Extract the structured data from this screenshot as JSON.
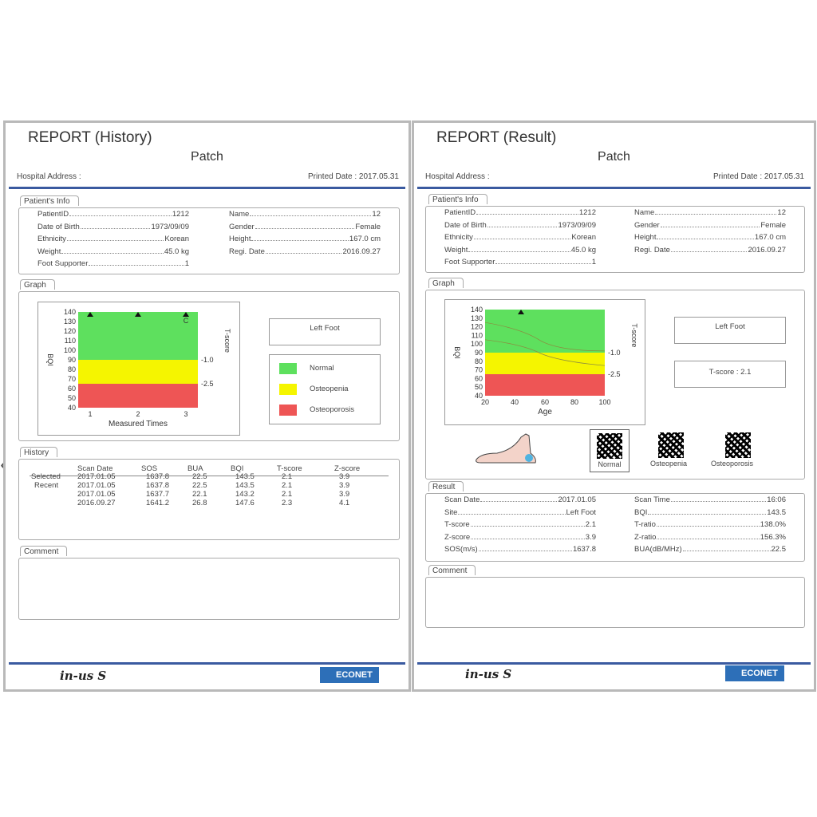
{
  "left": {
    "title": "REPORT (History)",
    "subtitle": "Patch",
    "hospital_address": "Hospital Address :",
    "printed_date": "Printed Date : 2017.05.31",
    "patient_tab": "Patient's Info",
    "patient": {
      "left": [
        {
          "label": "PatientID",
          "value": "1212"
        },
        {
          "label": "Date of Birth",
          "value": "1973/09/09"
        },
        {
          "label": "Ethnicity",
          "value": "Korean"
        },
        {
          "label": "Weight",
          "value": "45.0 kg"
        },
        {
          "label": "Foot Supporter",
          "value": "1"
        }
      ],
      "right": [
        {
          "label": "Name",
          "value": "12"
        },
        {
          "label": "Gender",
          "value": "Female"
        },
        {
          "label": "Height",
          "value": "167.0 cm"
        },
        {
          "label": "Regi. Date",
          "value": "2016.09.27"
        }
      ]
    },
    "graph_tab": "Graph",
    "chart": {
      "ylabel": "BQI",
      "right_label": "T-score",
      "xlabel": "Measured Times",
      "yticks": [
        "140",
        "130",
        "120",
        "110",
        "100",
        "90",
        "80",
        "70",
        "60",
        "50",
        "40"
      ],
      "xticks": [
        "1",
        "2",
        "3"
      ],
      "tscore_marks": [
        "-1.0",
        "-2.5"
      ],
      "current_marker": "C"
    },
    "side_label": "Left Foot",
    "legend": [
      "Normal",
      "Osteopenia",
      "Osteoporosis"
    ],
    "history_tab": "History",
    "history": {
      "headers": [
        "Scan Date",
        "SOS",
        "BUA",
        "BQI",
        "T-score",
        "Z-score"
      ],
      "row_labels": [
        "Selected",
        "Recent"
      ],
      "rows": [
        [
          "2017.01.05",
          "1637.8",
          "22.5",
          "143.5",
          "2.1",
          "3.9"
        ],
        [
          "2017.01.05",
          "1637.8",
          "22.5",
          "143.5",
          "2.1",
          "3.9"
        ],
        [
          "2017.01.05",
          "1637.7",
          "22.1",
          "143.2",
          "2.1",
          "3.9"
        ],
        [
          "2016.09.27",
          "1641.2",
          "26.8",
          "147.6",
          "2.3",
          "4.1"
        ]
      ]
    },
    "comment_tab": "Comment",
    "footer_brand": "in-us S",
    "footer_econet": "ECONET"
  },
  "right": {
    "title": "REPORT (Result)",
    "subtitle": "Patch",
    "hospital_address": "Hospital Address :",
    "printed_date": "Printed Date : 2017.05.31",
    "patient_tab": "Patient's Info",
    "patient": {
      "left": [
        {
          "label": "PatientID",
          "value": "1212"
        },
        {
          "label": "Date of Birth",
          "value": "1973/09/09"
        },
        {
          "label": "Ethnicity",
          "value": "Korean"
        },
        {
          "label": "Weight",
          "value": "45.0 kg"
        },
        {
          "label": "Foot Supporter",
          "value": "1"
        }
      ],
      "right": [
        {
          "label": "Name",
          "value": "12"
        },
        {
          "label": "Gender",
          "value": "Female"
        },
        {
          "label": "Height",
          "value": "167.0 cm"
        },
        {
          "label": "Regi. Date",
          "value": "2016.09.27"
        }
      ]
    },
    "graph_tab": "Graph",
    "chart": {
      "ylabel": "BQI",
      "right_label": "T-score",
      "xlabel": "Age",
      "yticks": [
        "140",
        "130",
        "120",
        "110",
        "100",
        "90",
        "80",
        "70",
        "60",
        "50",
        "40"
      ],
      "xticks": [
        "20",
        "40",
        "60",
        "80",
        "100"
      ],
      "tscore_marks": [
        "-1.0",
        "-2.5"
      ]
    },
    "side_label": "Left Foot",
    "tscore_label": "T-score : 2.1",
    "texture_labels": [
      "Normal",
      "Osteopenia",
      "Osteoporosis"
    ],
    "result_tab": "Result",
    "result": {
      "left": [
        {
          "label": "Scan Date",
          "value": "2017.01.05"
        },
        {
          "label": "Site",
          "value": "Left Foot"
        },
        {
          "label": "T-score",
          "value": "2.1"
        },
        {
          "label": "Z-score",
          "value": "3.9"
        },
        {
          "label": "SOS(m/s)",
          "value": "1637.8"
        }
      ],
      "right": [
        {
          "label": "Scan Time",
          "value": "16:06"
        },
        {
          "label": "BQI",
          "value": "143.5"
        },
        {
          "label": "T-ratio",
          "value": "138.0%"
        },
        {
          "label": "Z-ratio",
          "value": "156.3%"
        },
        {
          "label": "BUA(dB/MHz)",
          "value": "22.5"
        }
      ]
    },
    "comment_tab": "Comment",
    "footer_brand": "in-us S",
    "footer_econet": "ECONET"
  },
  "colors": {
    "normal": "#5ee05e",
    "osteopenia": "#f5f500",
    "osteoporosis": "#ee5555",
    "accent": "#3a5aa0"
  },
  "nav": {
    "prev": "‹",
    "next": "›"
  }
}
